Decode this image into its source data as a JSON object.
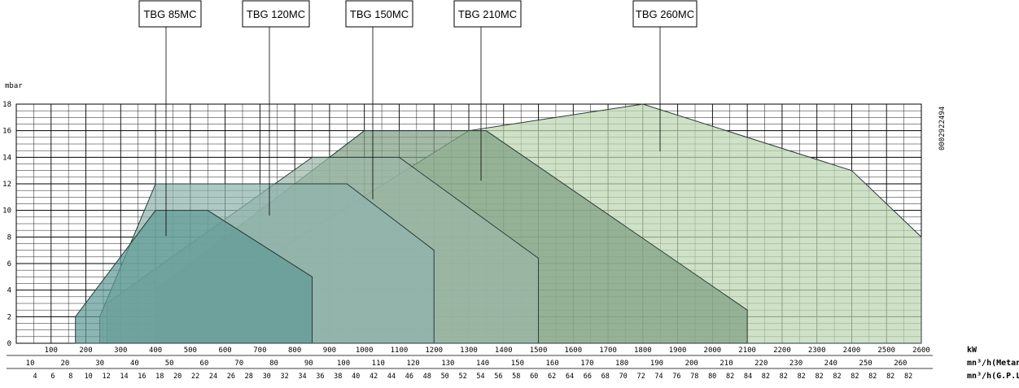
{
  "chart_data": {
    "type": "area",
    "title": "",
    "y_unit_label": "mbar",
    "code": "0002922494",
    "ylim": [
      0,
      18
    ],
    "y_ticks": [
      0,
      2,
      4,
      6,
      8,
      10,
      12,
      14,
      16,
      18
    ],
    "xlim": [
      0,
      2600
    ],
    "x_axes": [
      {
        "unit": "kW",
        "ticks": [
          "100",
          "200",
          "300",
          "400",
          "500",
          "600",
          "700",
          "800",
          "900",
          "1000",
          "1100",
          "1200",
          "1300",
          "1400",
          "1500",
          "1600",
          "1700",
          "1800",
          "1900",
          "2000",
          "2100",
          "2200",
          "2300",
          "2400",
          "2500",
          "2600"
        ]
      },
      {
        "unit": "mn³/h(Metano)",
        "ticks": [
          "10",
          "20",
          "30",
          "40",
          "50",
          "60",
          "70",
          "80",
          "90",
          "100",
          "110",
          "120",
          "130",
          "140",
          "150",
          "160",
          "170",
          "180",
          "190",
          "200",
          "210",
          "220",
          "230",
          "240",
          "250",
          "260"
        ]
      },
      {
        "unit": "mn³/h(G.P.L.)",
        "ticks": [
          "4",
          "6",
          "8",
          "10",
          "12",
          "14",
          "16",
          "18",
          "20",
          "22",
          "24",
          "26",
          "28",
          "30",
          "32",
          "34",
          "36",
          "38",
          "40",
          "42",
          "44",
          "46",
          "48",
          "50",
          "52",
          "54",
          "56",
          "58",
          "60",
          "62",
          "64",
          "66",
          "68",
          "70",
          "72",
          "74",
          "76",
          "78",
          "80",
          "82",
          "84",
          "82",
          "82",
          "82",
          "82",
          "82",
          "82",
          "82",
          "82",
          "82"
        ]
      }
    ],
    "series": [
      {
        "name": "TBG 85MC",
        "color": "#5f9a96",
        "line": "#2a3b3a",
        "points": [
          [
            170,
            0
          ],
          [
            170,
            2
          ],
          [
            400,
            10
          ],
          [
            550,
            10
          ],
          [
            850,
            5
          ],
          [
            850,
            0
          ]
        ]
      },
      {
        "name": "TBG 120MC",
        "color": "#8fb3ad",
        "line": "#2a3b3a",
        "points": [
          [
            240,
            0
          ],
          [
            240,
            2
          ],
          [
            400,
            12
          ],
          [
            950,
            12
          ],
          [
            1200,
            7
          ],
          [
            1200,
            0
          ]
        ]
      },
      {
        "name": "TBG 150MC",
        "color": "#9bb7a8",
        "line": "#2a3b3a",
        "points": [
          [
            260,
            0
          ],
          [
            260,
            3
          ],
          [
            850,
            14
          ],
          [
            1100,
            14
          ],
          [
            1500,
            6.4
          ],
          [
            1500,
            0
          ]
        ]
      },
      {
        "name": "TBG 210MC",
        "color": "#7fa084",
        "line": "#2a3b3a",
        "points": [
          [
            400,
            0
          ],
          [
            400,
            4
          ],
          [
            1000,
            16
          ],
          [
            1350,
            16
          ],
          [
            2100,
            2.5
          ],
          [
            2100,
            0
          ]
        ]
      },
      {
        "name": "TBG 260MC",
        "color": "#bcd6b2",
        "line": "#2a3b3a",
        "points": [
          [
            450,
            0
          ],
          [
            450,
            2
          ],
          [
            1300,
            16
          ],
          [
            1800,
            18
          ],
          [
            2400,
            13
          ],
          [
            2600,
            8
          ],
          [
            2600,
            0
          ]
        ]
      }
    ]
  }
}
